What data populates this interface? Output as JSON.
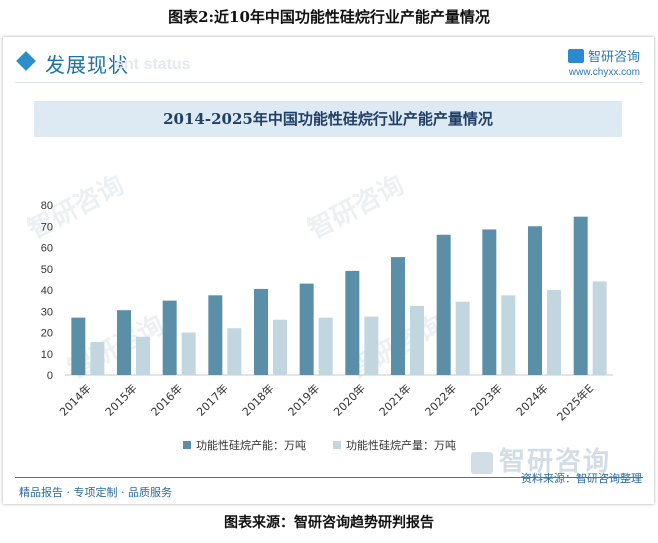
{
  "figure_title": "图表2:近10年中国功能性硅烷行业产能产量情况",
  "section": {
    "title": "发展现状",
    "ghost_text": "ent status"
  },
  "brand": {
    "name": "智研咨询",
    "url": "www.chyxx.com"
  },
  "watermark_text": "智研咨询",
  "chart_data": {
    "type": "bar",
    "title": "2014-2025年中国功能性硅烷行业产能产量情况",
    "categories": [
      "2014年",
      "2015年",
      "2016年",
      "2017年",
      "2018年",
      "2019年",
      "2020年",
      "2021年",
      "2022年",
      "2023年",
      "2024年",
      "2025年E"
    ],
    "series": [
      {
        "name": "功能性硅烷产能：万吨",
        "color": "#5b8fa8",
        "values": [
          27,
          30.5,
          35,
          37.5,
          40.5,
          43,
          49,
          55.5,
          66,
          68.5,
          70,
          74.5
        ]
      },
      {
        "name": "功能性硅烷产量：万吨",
        "color": "#c1d6df",
        "values": [
          15.5,
          18,
          20,
          22,
          26,
          27,
          27.5,
          32.5,
          34.5,
          37.5,
          40,
          44
        ]
      }
    ],
    "ylim": [
      0,
      80
    ],
    "yticks": [
      "0",
      "10",
      "20",
      "30",
      "40",
      "50",
      "60",
      "70",
      "80"
    ],
    "grid": false,
    "legend": "bottom"
  },
  "footer": {
    "left": "精品报告 · 专项定制 · 品质服务",
    "source": "资料来源：智研咨询整理",
    "logo": "智研咨询"
  },
  "caption": "图表来源：智研咨询趋势研判报告"
}
